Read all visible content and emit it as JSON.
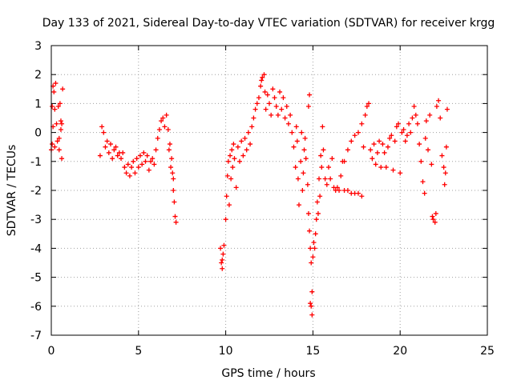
{
  "chart_data": {
    "type": "scatter",
    "title": "Day 133 of 2021, Sidereal Day-to-day VTEC variation (SDTVAR) for receiver krgg",
    "xlabel": "GPS time / hours",
    "ylabel": "SDTVAR / TECUs",
    "xlim": [
      0,
      25
    ],
    "ylim": [
      -7,
      3
    ],
    "xticks": [
      0,
      5,
      10,
      15,
      20,
      25
    ],
    "yticks": [
      3,
      2,
      1,
      0,
      -1,
      -2,
      -3,
      -4,
      -5,
      -6,
      -7
    ],
    "grid": true,
    "marker": "+",
    "color": "#ff0000",
    "series": [
      {
        "name": "SDTVAR",
        "points": [
          [
            0.0,
            -0.6
          ],
          [
            0.05,
            0.9
          ],
          [
            0.1,
            1.6
          ],
          [
            0.15,
            1.4
          ],
          [
            0.2,
            0.8
          ],
          [
            0.25,
            1.7
          ],
          [
            0.3,
            0.3
          ],
          [
            0.35,
            -0.3
          ],
          [
            0.4,
            0.9
          ],
          [
            0.45,
            -0.6
          ],
          [
            0.5,
            1.0
          ],
          [
            0.55,
            0.4
          ],
          [
            0.6,
            -0.9
          ],
          [
            0.65,
            1.5
          ],
          [
            0.55,
            0.1
          ],
          [
            0.45,
            -0.2
          ],
          [
            0.2,
            -0.5
          ],
          [
            0.1,
            0.2
          ],
          [
            0.05,
            -0.4
          ],
          [
            0.6,
            0.3
          ],
          [
            2.8,
            -0.8
          ],
          [
            2.9,
            0.2
          ],
          [
            3.0,
            0.0
          ],
          [
            3.1,
            -0.5
          ],
          [
            3.2,
            -0.3
          ],
          [
            3.3,
            -0.7
          ],
          [
            3.4,
            -0.4
          ],
          [
            3.5,
            -0.9
          ],
          [
            3.6,
            -0.6
          ],
          [
            3.7,
            -0.5
          ],
          [
            3.8,
            -0.8
          ],
          [
            3.9,
            -0.7
          ],
          [
            4.0,
            -0.9
          ],
          [
            4.1,
            -0.7
          ],
          [
            4.2,
            -1.2
          ],
          [
            4.3,
            -1.4
          ],
          [
            4.4,
            -1.1
          ],
          [
            4.5,
            -1.5
          ],
          [
            4.6,
            -1.2
          ],
          [
            4.7,
            -1.0
          ],
          [
            4.8,
            -1.4
          ],
          [
            4.9,
            -0.9
          ],
          [
            5.0,
            -1.2
          ],
          [
            5.1,
            -0.8
          ],
          [
            5.2,
            -1.1
          ],
          [
            5.3,
            -0.7
          ],
          [
            5.4,
            -1.0
          ],
          [
            5.5,
            -0.8
          ],
          [
            5.6,
            -1.3
          ],
          [
            5.7,
            -1.0
          ],
          [
            5.8,
            -0.9
          ],
          [
            5.9,
            -1.1
          ],
          [
            6.0,
            -0.6
          ],
          [
            6.1,
            -0.2
          ],
          [
            6.2,
            0.1
          ],
          [
            6.3,
            0.4
          ],
          [
            6.4,
            0.5
          ],
          [
            6.5,
            0.2
          ],
          [
            6.6,
            0.6
          ],
          [
            6.7,
            0.1
          ],
          [
            6.8,
            -0.4
          ],
          [
            6.9,
            -0.9
          ],
          [
            7.0,
            -1.6
          ],
          [
            7.05,
            -2.4
          ],
          [
            7.1,
            -2.9
          ],
          [
            7.15,
            -3.1
          ],
          [
            6.75,
            -0.6
          ],
          [
            6.85,
            -1.2
          ],
          [
            6.95,
            -1.4
          ],
          [
            7.0,
            -2.0
          ],
          [
            9.7,
            -4.0
          ],
          [
            9.75,
            -4.5
          ],
          [
            9.8,
            -4.7
          ],
          [
            9.85,
            -4.2
          ],
          [
            9.9,
            -3.9
          ],
          [
            9.8,
            -4.4
          ],
          [
            10.0,
            -3.0
          ],
          [
            10.05,
            -2.2
          ],
          [
            10.1,
            -1.5
          ],
          [
            10.15,
            -1.0
          ],
          [
            10.2,
            -2.5
          ],
          [
            10.25,
            -0.8
          ],
          [
            10.3,
            -1.6
          ],
          [
            10.35,
            -0.6
          ],
          [
            10.4,
            -1.2
          ],
          [
            10.45,
            -0.4
          ],
          [
            10.5,
            -0.9
          ],
          [
            10.6,
            -1.9
          ],
          [
            10.7,
            -0.5
          ],
          [
            10.8,
            -1.0
          ],
          [
            10.9,
            -0.3
          ],
          [
            11.0,
            -0.8
          ],
          [
            11.1,
            -0.2
          ],
          [
            11.2,
            -0.6
          ],
          [
            11.3,
            0.0
          ],
          [
            11.4,
            -0.4
          ],
          [
            11.5,
            0.2
          ],
          [
            11.6,
            0.5
          ],
          [
            11.7,
            0.8
          ],
          [
            11.8,
            1.0
          ],
          [
            11.9,
            1.2
          ],
          [
            12.0,
            1.6
          ],
          [
            12.05,
            1.8
          ],
          [
            12.1,
            1.9
          ],
          [
            12.2,
            2.0
          ],
          [
            12.25,
            1.4
          ],
          [
            12.3,
            0.8
          ],
          [
            12.4,
            1.3
          ],
          [
            12.5,
            1.0
          ],
          [
            12.6,
            0.6
          ],
          [
            12.7,
            1.5
          ],
          [
            12.8,
            1.2
          ],
          [
            12.9,
            0.9
          ],
          [
            13.0,
            0.6
          ],
          [
            13.1,
            1.4
          ],
          [
            13.2,
            0.8
          ],
          [
            13.3,
            1.2
          ],
          [
            13.4,
            0.5
          ],
          [
            13.5,
            0.9
          ],
          [
            13.6,
            0.3
          ],
          [
            13.7,
            0.6
          ],
          [
            13.8,
            0.0
          ],
          [
            13.9,
            -0.5
          ],
          [
            14.0,
            -1.2
          ],
          [
            14.05,
            0.2
          ],
          [
            14.1,
            -0.3
          ],
          [
            14.15,
            -1.6
          ],
          [
            14.2,
            -2.5
          ],
          [
            14.3,
            -1.0
          ],
          [
            14.35,
            0.0
          ],
          [
            14.4,
            -2.0
          ],
          [
            14.45,
            -1.4
          ],
          [
            14.5,
            -0.6
          ],
          [
            14.55,
            -0.2
          ],
          [
            14.6,
            -0.9
          ],
          [
            14.7,
            -1.8
          ],
          [
            14.75,
            -2.8
          ],
          [
            14.8,
            -3.4
          ],
          [
            14.85,
            -4.0
          ],
          [
            14.9,
            -4.5
          ],
          [
            14.95,
            -5.5
          ],
          [
            14.9,
            -6.0
          ],
          [
            14.95,
            -6.3
          ],
          [
            14.85,
            -5.9
          ],
          [
            14.8,
            1.3
          ],
          [
            14.75,
            0.9
          ],
          [
            15.0,
            -4.3
          ],
          [
            15.05,
            -3.8
          ],
          [
            15.1,
            -4.0
          ],
          [
            15.15,
            -3.5
          ],
          [
            15.2,
            -3.0
          ],
          [
            15.25,
            -2.4
          ],
          [
            15.3,
            -2.8
          ],
          [
            15.35,
            -1.6
          ],
          [
            15.4,
            -2.2
          ],
          [
            15.45,
            -0.8
          ],
          [
            15.5,
            -1.2
          ],
          [
            15.55,
            0.2
          ],
          [
            15.6,
            -0.6
          ],
          [
            15.7,
            -1.6
          ],
          [
            15.8,
            -1.8
          ],
          [
            15.9,
            -1.2
          ],
          [
            16.0,
            -1.6
          ],
          [
            16.1,
            -0.9
          ],
          [
            16.2,
            -1.9
          ],
          [
            16.3,
            -2.0
          ],
          [
            16.4,
            -1.9
          ],
          [
            16.5,
            -2.0
          ],
          [
            16.6,
            -1.5
          ],
          [
            16.7,
            -1.0
          ],
          [
            16.8,
            -2.0
          ],
          [
            17.0,
            -2.0
          ],
          [
            17.2,
            -2.1
          ],
          [
            17.4,
            -2.1
          ],
          [
            17.6,
            -2.1
          ],
          [
            17.8,
            -2.2
          ],
          [
            16.8,
            -1.0
          ],
          [
            17.0,
            -0.6
          ],
          [
            17.2,
            -0.3
          ],
          [
            17.4,
            -0.1
          ],
          [
            17.6,
            0.0
          ],
          [
            17.8,
            0.3
          ],
          [
            17.9,
            -0.5
          ],
          [
            18.0,
            0.6
          ],
          [
            18.1,
            0.9
          ],
          [
            18.2,
            1.0
          ],
          [
            18.3,
            -0.6
          ],
          [
            18.4,
            -0.9
          ],
          [
            18.5,
            -0.4
          ],
          [
            18.6,
            -1.1
          ],
          [
            18.7,
            -0.7
          ],
          [
            18.8,
            -0.3
          ],
          [
            18.9,
            -1.2
          ],
          [
            19.0,
            -0.4
          ],
          [
            19.1,
            -0.7
          ],
          [
            19.2,
            -1.2
          ],
          [
            19.3,
            -0.5
          ],
          [
            19.4,
            -0.2
          ],
          [
            19.5,
            -0.1
          ],
          [
            19.6,
            -1.3
          ],
          [
            19.7,
            -0.3
          ],
          [
            19.8,
            0.2
          ],
          [
            19.9,
            0.3
          ],
          [
            20.0,
            -1.4
          ],
          [
            20.1,
            0.0
          ],
          [
            20.2,
            0.1
          ],
          [
            20.3,
            -0.3
          ],
          [
            20.4,
            -0.1
          ],
          [
            20.5,
            0.3
          ],
          [
            20.6,
            0.0
          ],
          [
            20.7,
            0.5
          ],
          [
            20.8,
            0.9
          ],
          [
            20.9,
            0.6
          ],
          [
            21.0,
            0.3
          ],
          [
            21.1,
            -0.4
          ],
          [
            21.2,
            -1.0
          ],
          [
            21.3,
            -1.7
          ],
          [
            21.4,
            -2.1
          ],
          [
            21.45,
            -0.2
          ],
          [
            21.5,
            0.4
          ],
          [
            21.6,
            -0.6
          ],
          [
            21.7,
            0.6
          ],
          [
            21.8,
            -1.1
          ],
          [
            21.85,
            -2.9
          ],
          [
            21.9,
            -3.0
          ],
          [
            22.0,
            -3.1
          ],
          [
            22.05,
            -2.8
          ],
          [
            22.1,
            0.9
          ],
          [
            22.2,
            1.1
          ],
          [
            22.3,
            0.5
          ],
          [
            22.4,
            -0.8
          ],
          [
            22.5,
            -1.2
          ],
          [
            22.55,
            -1.8
          ],
          [
            22.6,
            -1.4
          ],
          [
            22.65,
            -0.5
          ],
          [
            22.7,
            0.8
          ]
        ]
      }
    ]
  }
}
